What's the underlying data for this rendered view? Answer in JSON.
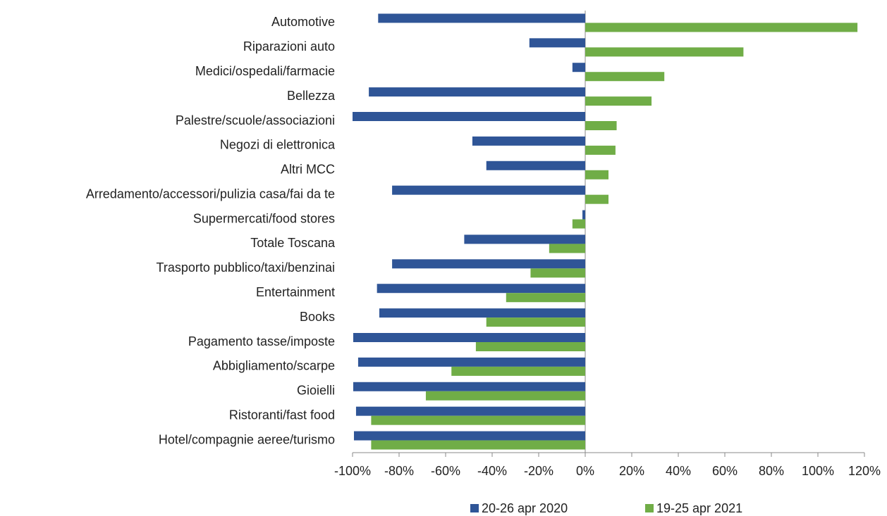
{
  "chart_data": {
    "type": "hbar",
    "categories": [
      "Automotive",
      "Riparazioni auto",
      "Medici/ospedali/farmacie",
      "Bellezza",
      "Palestre/scuole/associazioni",
      "Negozi di elettronica",
      "Altri MCC",
      "Arredamento/accessori/pulizia casa/fai da te",
      "Supermercati/food stores",
      "Totale Toscana",
      "Trasporto pubblico/taxi/benzinai",
      "Entertainment",
      "Books",
      "Pagamento tasse/imposte",
      "Abbigliamento/scarpe",
      "Gioielli",
      "Ristoranti/fast food",
      "Hotel/compagnie aeree/turismo"
    ],
    "series": [
      {
        "name": "20-26 apr 2020",
        "color": "#2f5597",
        "values": [
          -89,
          -24,
          -5.5,
          -93,
          -100,
          -48.5,
          -42.5,
          -83,
          -1.2,
          -52,
          -83,
          -89.5,
          -88.5,
          -99.7,
          -97.6,
          -99.7,
          -98.5,
          -99.4
        ]
      },
      {
        "name": "19-25 apr 2021",
        "color": "#70ad47",
        "values": [
          117,
          68,
          34,
          28.5,
          13.5,
          13,
          10,
          10,
          -5.5,
          -15.5,
          -23.5,
          -34,
          -42.5,
          -47,
          -57.5,
          -68.5,
          -92,
          -92
        ]
      }
    ],
    "xlim": [
      -100,
      120
    ],
    "xticks": [
      {
        "value": -100,
        "label": "-100%"
      },
      {
        "value": -80,
        "label": "-80%"
      },
      {
        "value": -60,
        "label": "-60%"
      },
      {
        "value": -40,
        "label": "-40%"
      },
      {
        "value": -20,
        "label": "-20%"
      },
      {
        "value": 0,
        "label": "0%"
      },
      {
        "value": 20,
        "label": "20%"
      },
      {
        "value": 40,
        "label": "40%"
      },
      {
        "value": 60,
        "label": "60%"
      },
      {
        "value": 80,
        "label": "80%"
      },
      {
        "value": 100,
        "label": "100%"
      },
      {
        "value": 120,
        "label": "120%"
      }
    ],
    "legend": "bottom"
  }
}
